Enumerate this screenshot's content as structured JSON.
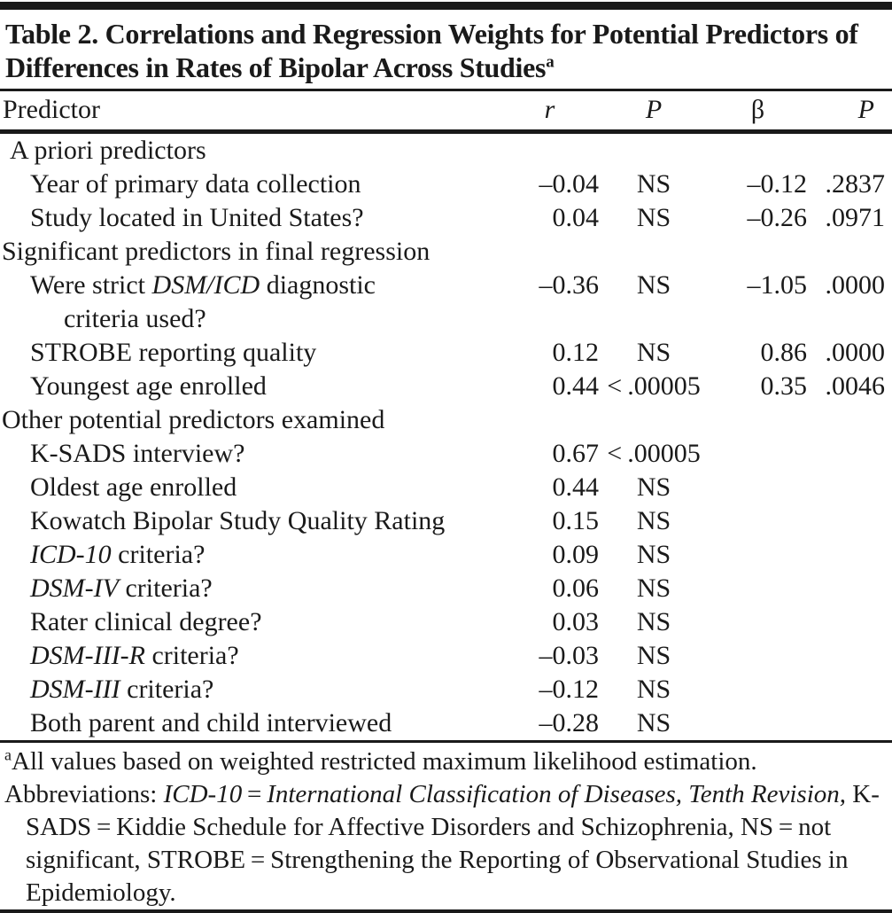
{
  "colors": {
    "ink": "#1a1a1a",
    "background": "#ffffff"
  },
  "table": {
    "title": "Table 2. Correlations and Regression Weights for Potential Predictors of Differences in Rates of Bipolar Across Studies",
    "title_sup": "a",
    "columns": {
      "predictor": "Predictor",
      "r": "r",
      "p1": "P",
      "beta": "β",
      "p2": "P"
    },
    "rows": [
      {
        "kind": "group",
        "level": 1,
        "label": [
          {
            "t": "A priori predictors"
          }
        ]
      },
      {
        "kind": "item",
        "level": 2,
        "label": [
          {
            "t": "Year of primary data collection"
          }
        ],
        "r": "–0.04",
        "p1": "NS",
        "beta": "–0.12",
        "p2": ".2837"
      },
      {
        "kind": "item",
        "level": 2,
        "label": [
          {
            "t": "Study located in United States?"
          }
        ],
        "r": "0.04",
        "p1": "NS",
        "beta": "–0.26",
        "p2": ".0971"
      },
      {
        "kind": "group",
        "level": 0,
        "label": [
          {
            "t": "Significant predictors in final regression"
          }
        ]
      },
      {
        "kind": "item",
        "level": 2,
        "label": [
          {
            "t": "Were strict "
          },
          {
            "t": "DSM/ICD",
            "i": true
          },
          {
            "t": " diagnostic"
          }
        ],
        "label2": "criteria used?",
        "r": "–0.36",
        "p1": "NS",
        "beta": "–1.05",
        "p2": ".0000"
      },
      {
        "kind": "item",
        "level": 2,
        "label": [
          {
            "t": "STROBE reporting quality"
          }
        ],
        "r": "0.12",
        "p1": "NS",
        "beta": "0.86",
        "p2": ".0000"
      },
      {
        "kind": "item",
        "level": 2,
        "label": [
          {
            "t": "Youngest age enrolled"
          }
        ],
        "r": "0.44",
        "p1": "< .00005",
        "beta": "0.35",
        "p2": ".0046"
      },
      {
        "kind": "group",
        "level": 0,
        "label": [
          {
            "t": "Other potential predictors examined"
          }
        ]
      },
      {
        "kind": "item",
        "level": 2,
        "label": [
          {
            "t": "K-SADS interview?"
          }
        ],
        "r": "0.67",
        "p1": "< .00005"
      },
      {
        "kind": "item",
        "level": 2,
        "label": [
          {
            "t": "Oldest age enrolled"
          }
        ],
        "r": "0.44",
        "p1": "NS"
      },
      {
        "kind": "item",
        "level": 2,
        "label": [
          {
            "t": "Kowatch Bipolar Study Quality Rating"
          }
        ],
        "r": "0.15",
        "p1": "NS"
      },
      {
        "kind": "item",
        "level": 2,
        "label": [
          {
            "t": "ICD-10",
            "i": true
          },
          {
            "t": " criteria?"
          }
        ],
        "r": "0.09",
        "p1": "NS"
      },
      {
        "kind": "item",
        "level": 2,
        "label": [
          {
            "t": "DSM-IV",
            "i": true
          },
          {
            "t": " criteria?"
          }
        ],
        "r": "0.06",
        "p1": "NS"
      },
      {
        "kind": "item",
        "level": 2,
        "label": [
          {
            "t": "Rater clinical degree?"
          }
        ],
        "r": "0.03",
        "p1": "NS"
      },
      {
        "kind": "item",
        "level": 2,
        "label": [
          {
            "t": "DSM-III-R",
            "i": true
          },
          {
            "t": " criteria?"
          }
        ],
        "r": "–0.03",
        "p1": "NS"
      },
      {
        "kind": "item",
        "level": 2,
        "label": [
          {
            "t": "DSM-III",
            "i": true
          },
          {
            "t": " criteria?"
          }
        ],
        "r": "–0.12",
        "p1": "NS"
      },
      {
        "kind": "item",
        "level": 2,
        "label": [
          {
            "t": "Both parent and child interviewed"
          }
        ],
        "r": "–0.28",
        "p1": "NS"
      }
    ],
    "footnotes": [
      {
        "hang": false,
        "segments": [
          {
            "t": "a",
            "sup": true
          },
          {
            "t": "All values based on weighted restricted maximum likelihood estimation."
          }
        ]
      },
      {
        "hang": true,
        "segments": [
          {
            "t": "Abbreviations: "
          },
          {
            "t": "ICD-10",
            "i": true
          },
          {
            "t": " = "
          },
          {
            "t": "International Classification of Diseases, Tenth Revision,",
            "i": true
          },
          {
            "t": " K-SADS = Kiddie Schedule for Affective Disorders and Schizophrenia, NS = not significant, STROBE = Strengthening the Reporting of Observational Studies in Epidemiology."
          }
        ]
      }
    ]
  }
}
